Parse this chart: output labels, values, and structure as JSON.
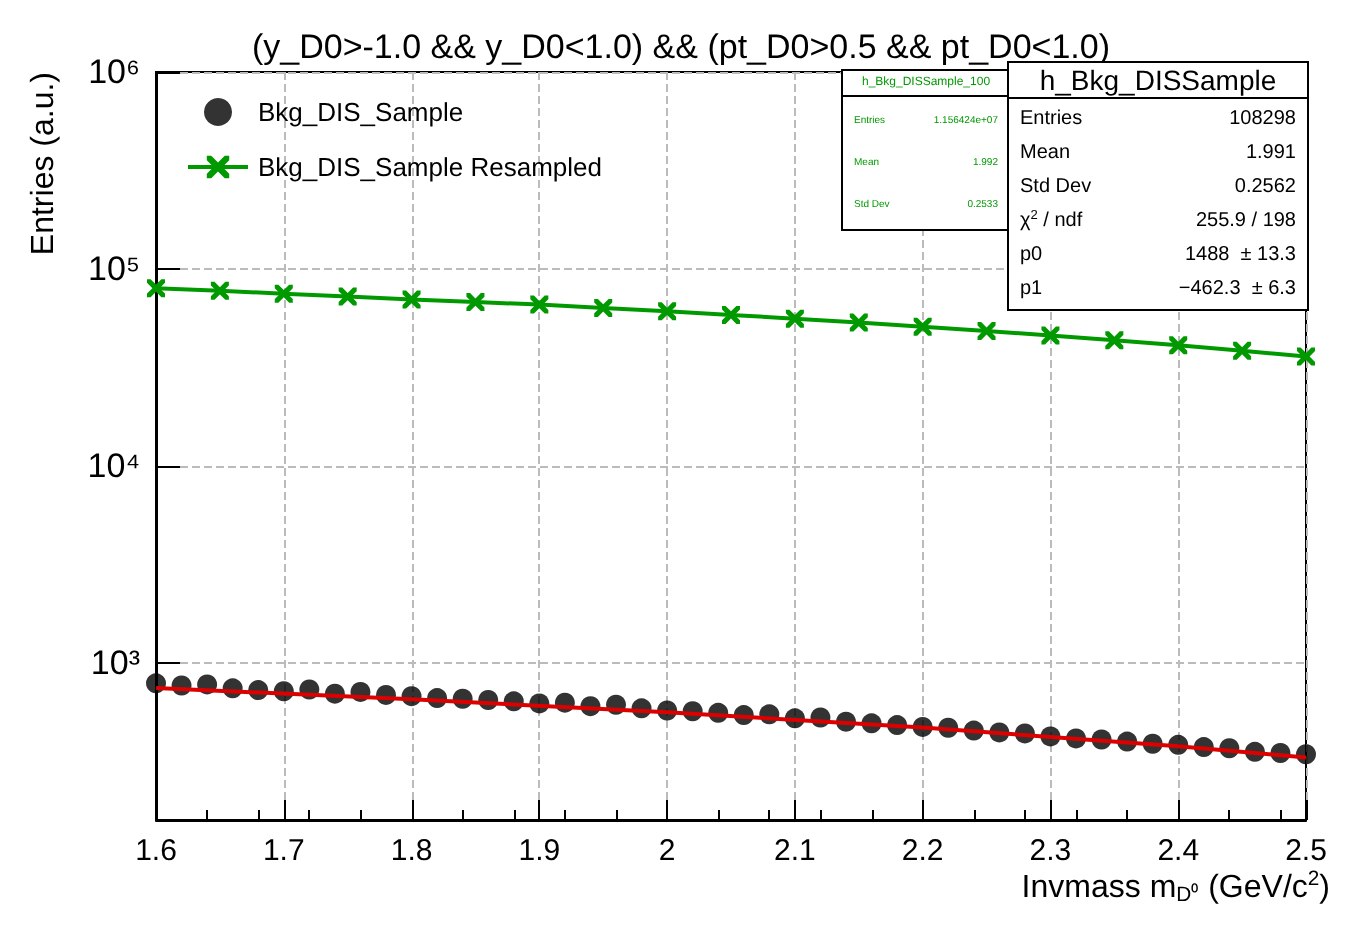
{
  "chart_data": {
    "type": "scatter",
    "title": "(y_D0>-1.0 && y_D0<1.0) && (pt_D0>0.5 && pt_D0<1.0)",
    "xlabel": "Invmass m$_{D⁰}$ (GeV/c$^{2}$)",
    "ylabel": "Entries (a.u.)",
    "xlim": [
      1.6,
      2.5
    ],
    "xticks": [
      1.6,
      1.7,
      1.8,
      1.9,
      2,
      2.1,
      2.2,
      2.3,
      2.4,
      2.5
    ],
    "ylim": [
      160,
      1000000
    ],
    "yticks": [
      {
        "value": 1000,
        "label": "10³"
      },
      {
        "value": 10000,
        "label": "10⁴"
      },
      {
        "value": 100000,
        "label": "10⁵"
      },
      {
        "value": 1000000,
        "label": "10⁶"
      }
    ],
    "log": "y",
    "grid": true,
    "legend": "top left",
    "series": [
      {
        "name": "Bkg_DIS_Sample",
        "marker": "circle",
        "color": "#000000",
        "x": [
          1.6,
          1.62,
          1.64,
          1.66,
          1.68,
          1.7,
          1.72,
          1.74,
          1.76,
          1.78,
          1.8,
          1.82,
          1.84,
          1.86,
          1.88,
          1.9,
          1.92,
          1.94,
          1.96,
          1.98,
          2,
          2.02,
          2.04,
          2.06,
          2.08,
          2.1,
          2.12,
          2.14,
          2.16,
          2.18,
          2.2,
          2.22,
          2.24,
          2.26,
          2.28,
          2.3,
          2.32,
          2.34,
          2.36,
          2.38,
          2.4,
          2.42,
          2.44,
          2.46,
          2.48,
          2.5
        ],
        "values": [
          790,
          770,
          780,
          745,
          730,
          720,
          735,
          700,
          715,
          690,
          680,
          665,
          660,
          650,
          640,
          625,
          630,
          605,
          615,
          590,
          575,
          570,
          560,
          545,
          550,
          525,
          530,
          505,
          495,
          485,
          475,
          470,
          455,
          445,
          440,
          425,
          415,
          410,
          400,
          390,
          385,
          375,
          370,
          355,
          350,
          345
        ]
      },
      {
        "name": "Bkg_DIS_Sample Resampled",
        "type": "line",
        "marker": "cross",
        "color": "#009900",
        "x": [
          1.6,
          1.65,
          1.7,
          1.75,
          1.8,
          1.85,
          1.9,
          1.95,
          2,
          2.05,
          2.1,
          2.15,
          2.2,
          2.25,
          2.3,
          2.35,
          2.4,
          2.45,
          2.5
        ],
        "values": [
          80000,
          77500,
          75000,
          72500,
          70000,
          68000,
          66000,
          63500,
          61000,
          58500,
          56000,
          53500,
          51000,
          48500,
          46000,
          43500,
          41000,
          38500,
          36000
        ]
      },
      {
        "type": "line",
        "marker": "none",
        "color": "#dd0000",
        "x": [
          1.6,
          1.8,
          2,
          2.2,
          2.4,
          2.5
        ],
        "values": [
          748.3,
          655.9,
          563.4,
          470.9,
          378.5,
          332.3
        ]
      }
    ],
    "annotations": [
      "h_Bkg_DISSample_100\nEntries\t1.156424e+07\nMean\t1.992\nStd Dev\t0.2533",
      "h_Bkg_DISSample\nEntries\t108298\nMean\t1.991\nStd Dev\t0.2562\nχ$^{2}$ / ndf\t255.9 / 198\np0\t1488  ± 13.3\np1\t−462.3  ± 6.3"
    ]
  }
}
